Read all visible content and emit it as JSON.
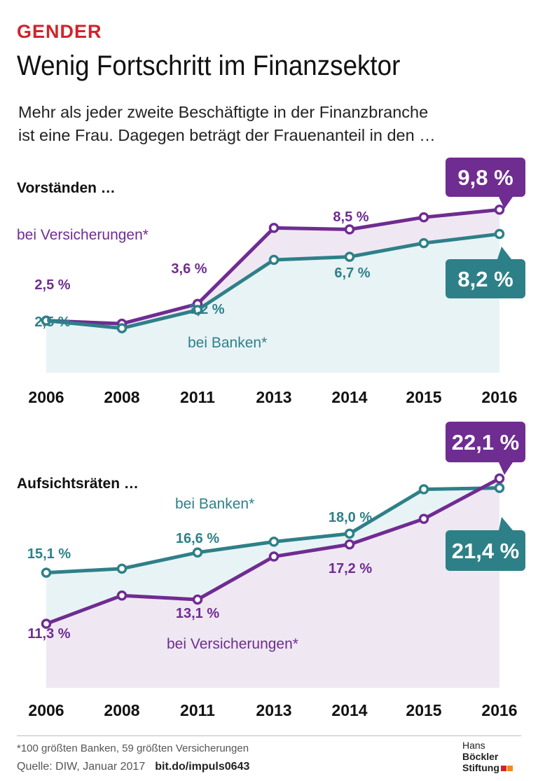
{
  "header": {
    "kicker": "GENDER",
    "title": "Wenig Fortschritt im Finanzsektor",
    "subtitle_line1": "Mehr als jeder zweite Beschäftigte in der Finanzbranche",
    "subtitle_line2": "ist eine Frau. Dagegen beträgt der Frauenanteil in den …"
  },
  "colors": {
    "purple": "#6f2c91",
    "teal": "#2e8088",
    "purple_fill": "#efe8f3",
    "teal_fill": "#e8f3f6",
    "accent_red": "#d2232a",
    "accent_orange": "#f08a1e"
  },
  "chart_data": [
    {
      "type": "line",
      "title": "Vorständen …",
      "categories": [
        "2006",
        "2008",
        "2011",
        "2013",
        "2014",
        "2015",
        "2016"
      ],
      "series": [
        {
          "name": "bei Versicherungen*",
          "values": [
            2.5,
            2.3,
            3.6,
            8.6,
            8.5,
            9.3,
            9.8
          ],
          "labels": [
            "2,5 %",
            "",
            "3,6 %",
            "",
            "8,5 %",
            "",
            "9,8 %"
          ]
        },
        {
          "name": "bei Banken*",
          "values": [
            2.5,
            2.0,
            3.2,
            6.5,
            6.7,
            7.6,
            8.2
          ],
          "labels": [
            "2,5 %",
            "",
            "3,2 %",
            "",
            "6,7 %",
            "",
            "8,2 %"
          ]
        }
      ]
    },
    {
      "type": "line",
      "title": "Aufsichtsräten …",
      "categories": [
        "2006",
        "2008",
        "2011",
        "2013",
        "2014",
        "2015",
        "2016"
      ],
      "series": [
        {
          "name": "bei Banken*",
          "values": [
            15.1,
            15.4,
            16.6,
            17.4,
            18.0,
            21.3,
            21.4
          ],
          "labels": [
            "15,1 %",
            "",
            "16,6 %",
            "",
            "18,0 %",
            "",
            "21,4 %"
          ]
        },
        {
          "name": "bei Versicherungen*",
          "values": [
            11.3,
            13.4,
            13.1,
            16.3,
            17.2,
            19.1,
            22.1
          ],
          "labels": [
            "11,3 %",
            "",
            "13,1 %",
            "",
            "17,2 %",
            "",
            "22,1 %"
          ]
        }
      ]
    }
  ],
  "footer": {
    "footnote": "*100 größten Banken, 59 größten Versicherungen",
    "source": "Quelle: DIW, Januar 2017",
    "link": "bit.do/impuls0643",
    "logo_line1_a": "Hans",
    "logo_line1_b": "Böckler",
    "logo_line2": "Stiftung"
  }
}
